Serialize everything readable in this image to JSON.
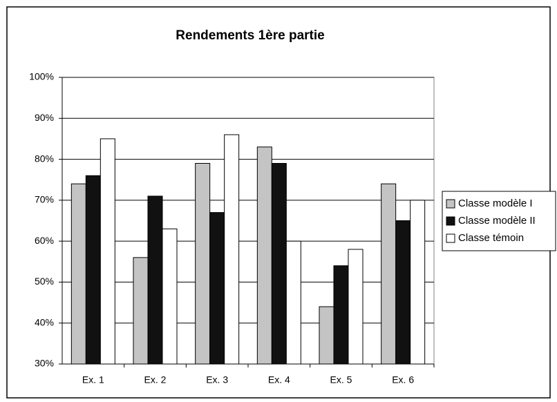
{
  "chart_data": {
    "type": "bar",
    "title": "Rendements 1ère partie",
    "categories": [
      "Ex. 1",
      "Ex. 2",
      "Ex. 3",
      "Ex. 4",
      "Ex. 5",
      "Ex. 6"
    ],
    "series": [
      {
        "name": "Classe modèle I",
        "color": "#c4c4c4",
        "values": [
          74,
          56,
          79,
          83,
          44,
          74
        ]
      },
      {
        "name": "Classe modèle II",
        "color": "#111111",
        "values": [
          76,
          71,
          67,
          79,
          54,
          65
        ]
      },
      {
        "name": "Classe témoin",
        "color": "#ffffff",
        "values": [
          85,
          63,
          86,
          60,
          58,
          70
        ]
      }
    ],
    "ylim": [
      30,
      100
    ],
    "yticks": [
      {
        "value": 30,
        "label": "30%"
      },
      {
        "value": 40,
        "label": "40%"
      },
      {
        "value": 50,
        "label": "50%"
      },
      {
        "value": 60,
        "label": "60%"
      },
      {
        "value": 70,
        "label": "70%"
      },
      {
        "value": 80,
        "label": "80%"
      },
      {
        "value": 90,
        "label": "90%"
      },
      {
        "value": 100,
        "label": "100%"
      }
    ],
    "grid": true,
    "legend": "right"
  }
}
